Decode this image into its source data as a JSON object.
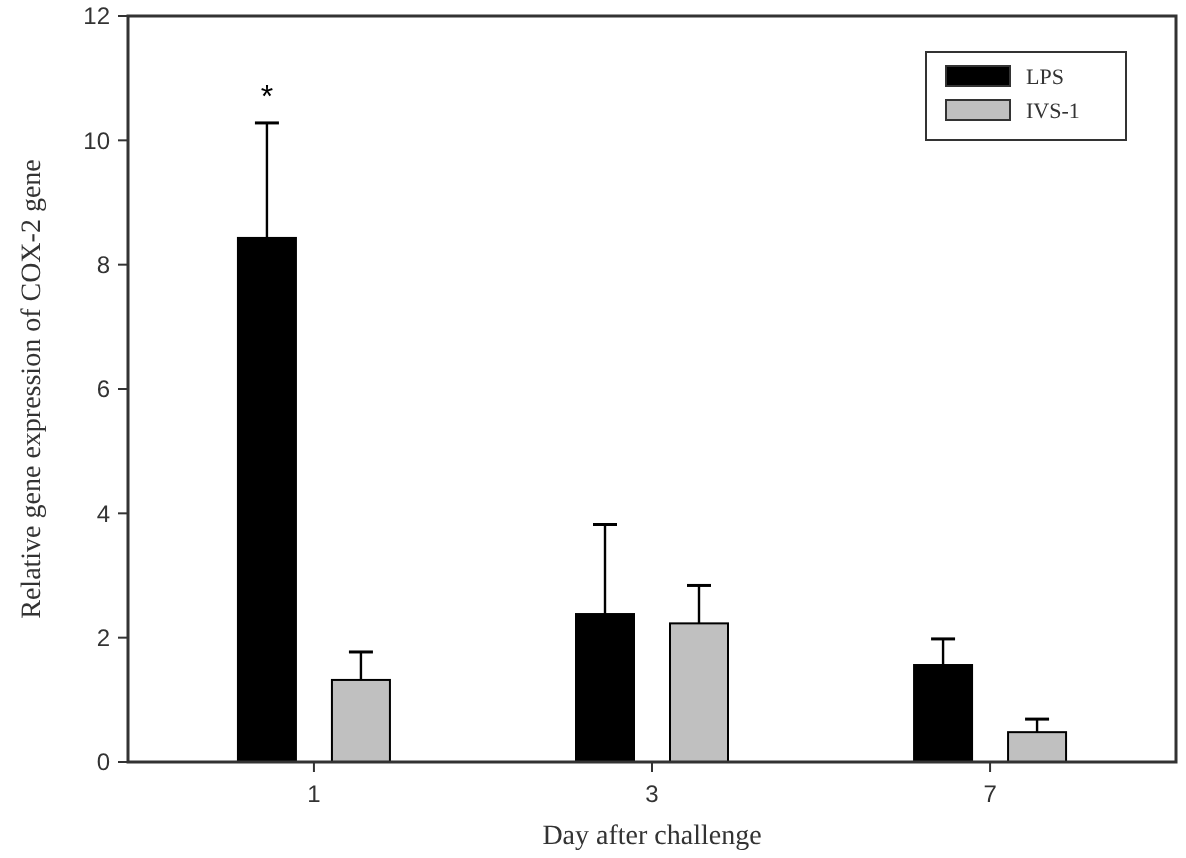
{
  "chart_data": {
    "type": "bar",
    "xlabel": "Day after challenge",
    "ylabel": "Relative gene expression of COX-2 gene",
    "categories": [
      "1",
      "3",
      "7"
    ],
    "series": [
      {
        "name": "LPS",
        "color": "#000000",
        "values": [
          8.43,
          2.38,
          1.56
        ],
        "errors": [
          1.85,
          1.44,
          0.42
        ]
      },
      {
        "name": "IVS-1",
        "color": "#c0c0c0",
        "values": [
          1.32,
          2.23,
          0.48
        ],
        "errors": [
          0.45,
          0.61,
          0.21
        ]
      }
    ],
    "ylim": [
      0,
      12
    ],
    "yticks": [
      0,
      2,
      4,
      6,
      8,
      10,
      12
    ],
    "grid": false,
    "legend": "top right",
    "annotations": [
      "*"
    ]
  }
}
